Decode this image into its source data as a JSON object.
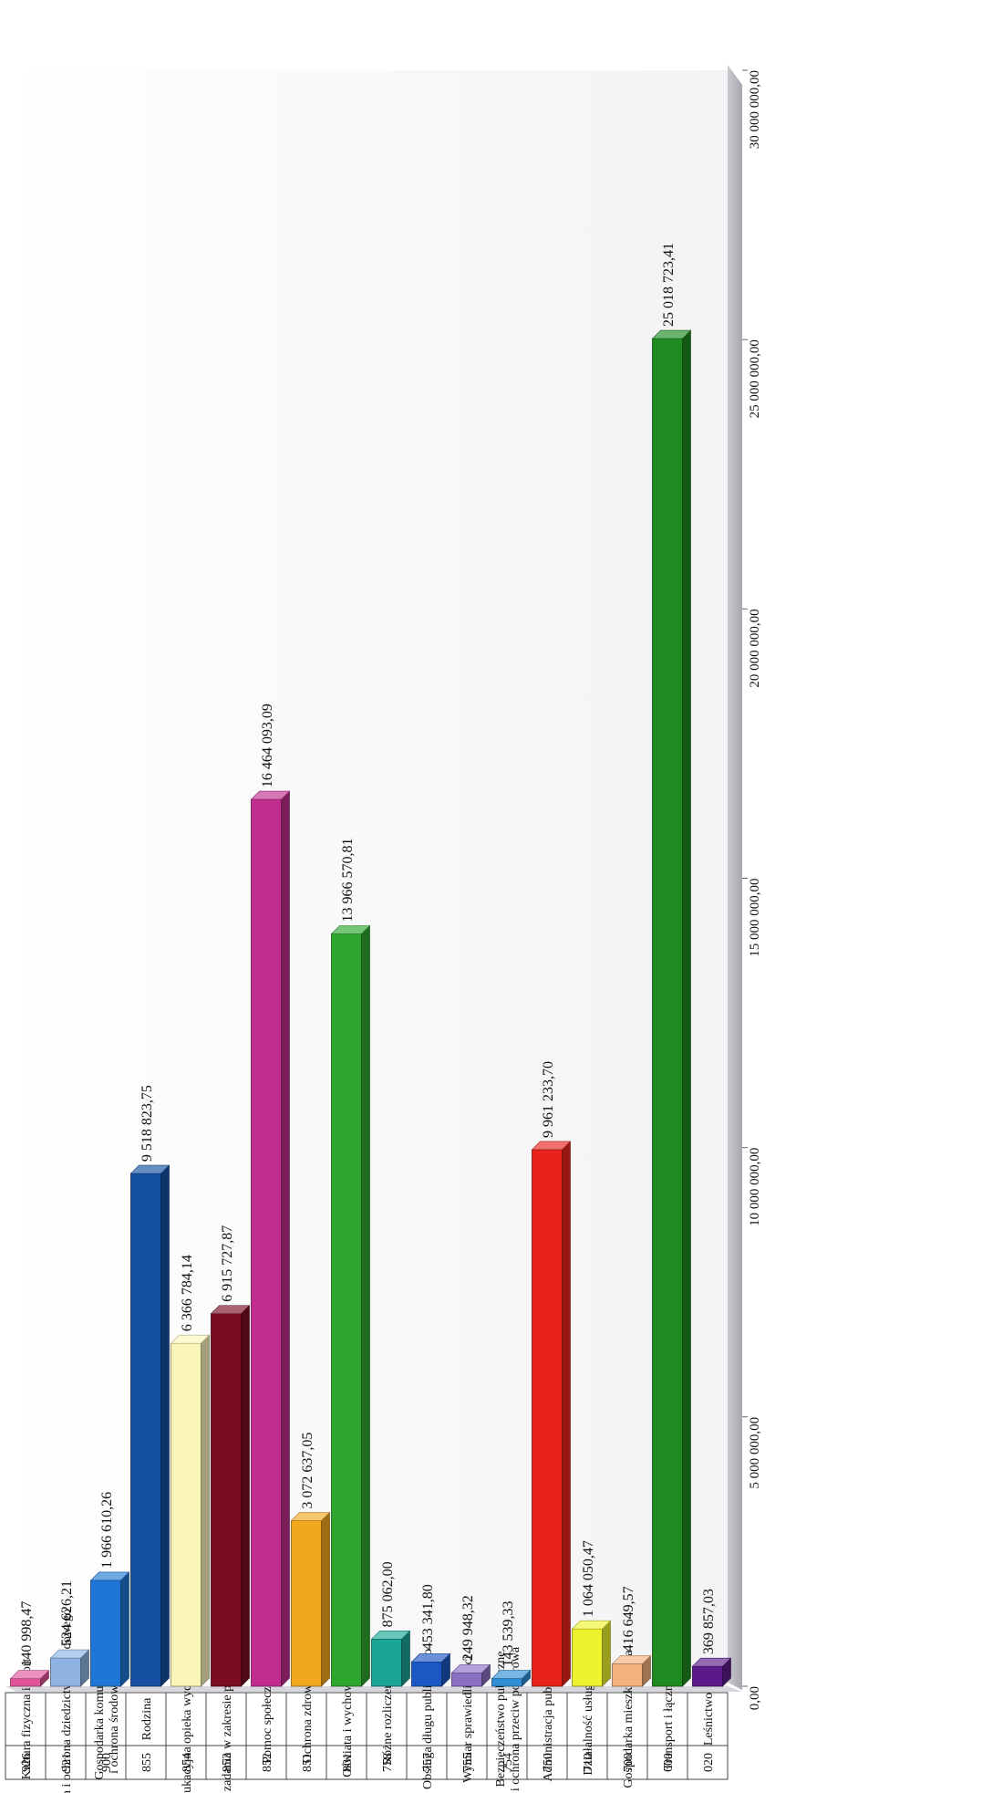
{
  "chart_data": {
    "type": "bar",
    "orientation": "horizontal",
    "xlim": [
      0,
      30000000
    ],
    "x_ticks": [
      "0,00",
      "5 000 000,00",
      "10 000 000,00",
      "15 000 000,00",
      "20 000 000,00",
      "25 000 000,00",
      "30 000 000,00"
    ],
    "grid": false,
    "legend": "none",
    "categories": [
      {
        "code": "926",
        "name": [
          "Kultura fizyczna i sport"
        ],
        "value": 140998.47,
        "label": "140 998,47",
        "color": "#e0559a"
      },
      {
        "code": "921",
        "name": [
          "Kultura i ochrona dziedzictwa narodowego"
        ],
        "value": 524626.21,
        "label": "524 626,21",
        "color": "#8fb4e4"
      },
      {
        "code": "900",
        "name": [
          "Gospodarka komunalna",
          "i ochrona środowiska"
        ],
        "value": 1966610.26,
        "label": "1 966 610,26",
        "color": "#1e77d6"
      },
      {
        "code": "855",
        "name": [
          "Rodzina"
        ],
        "value": 9518823.75,
        "label": "9 518 823,75",
        "color": "#1650a3"
      },
      {
        "code": "854",
        "name": [
          "Edukacyjna opieka wychowawcza"
        ],
        "value": 6366784.14,
        "label": "6 366 784,14",
        "color": "#fbf4b8"
      },
      {
        "code": "853",
        "name": [
          "Pozostałe zadania w zakresie polityki społecznej"
        ],
        "value": 6915727.87,
        "label": "6 915 727,87",
        "color": "#7a0d24"
      },
      {
        "code": "852",
        "name": [
          "Pomoc społeczna"
        ],
        "value": 16464093.09,
        "label": "16 464 093,09",
        "color": "#c02d8e"
      },
      {
        "code": "851",
        "name": [
          "Ochrona zdrowia"
        ],
        "value": 3072637.05,
        "label": "3 072 637,05",
        "color": "#f2a81e"
      },
      {
        "code": "801",
        "name": [
          "Oświata i wychowanie"
        ],
        "value": 13966570.81,
        "label": "13 966 570,81",
        "color": "#2ea62e"
      },
      {
        "code": "758",
        "name": [
          "Różne rozliczenia"
        ],
        "value": 875062.0,
        "label": "875 062,00",
        "color": "#1aa597"
      },
      {
        "code": "757",
        "name": [
          "Obsługa długu publicznego"
        ],
        "value": 453341.8,
        "label": "453 341,80",
        "color": "#1b58c4"
      },
      {
        "code": "755",
        "name": [
          "Wymiar sprawiedliwości"
        ],
        "value": 249948.32,
        "label": "249 948,32",
        "color": "#8a6fc4"
      },
      {
        "code": "754",
        "name": [
          "Bezpieczeństwo publiczne",
          "i ochrona przeciw pożarowa"
        ],
        "value": 143539.33,
        "label": "143 539,33",
        "color": "#2e8fd6"
      },
      {
        "code": "750",
        "name": [
          "Administracja publiczna"
        ],
        "value": 9961233.7,
        "label": "9 961 233,70",
        "color": "#e8231b"
      },
      {
        "code": "710",
        "name": [
          "Działalność usługowa"
        ],
        "value": 1064050.47,
        "label": "1 064 050,47",
        "color": "#eef22e"
      },
      {
        "code": "700",
        "name": [
          "Gospodarka mieszkaniowa"
        ],
        "value": 416649.57,
        "label": "416 649,57",
        "color": "#f4b17e"
      },
      {
        "code": "600",
        "name": [
          "Transport i łączność"
        ],
        "value": 25018723.41,
        "label": "25 018 723,41",
        "color": "#1f8a1f"
      },
      {
        "code": "020",
        "name": [
          "Leśnictwo"
        ],
        "value": 369857.03,
        "label": "369 857,03",
        "color": "#5a1a8a"
      }
    ]
  }
}
